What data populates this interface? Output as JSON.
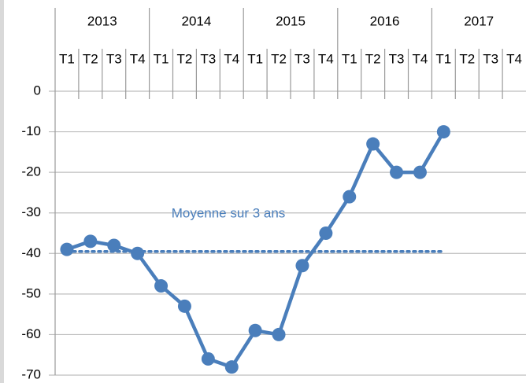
{
  "chart_data": {
    "type": "line",
    "groups": [
      "2013",
      "2014",
      "2015",
      "2016",
      "2017"
    ],
    "categories": [
      "T1",
      "T2",
      "T3",
      "T4",
      "T1",
      "T2",
      "T3",
      "T4",
      "T1",
      "T2",
      "T3",
      "T4",
      "T1",
      "T2",
      "T3",
      "T4",
      "T1",
      "T2",
      "T3",
      "T4"
    ],
    "series": [
      {
        "color": "#4a7ebb",
        "values": [
          -39,
          -37,
          -38,
          -40,
          -48,
          -53,
          -66,
          -68,
          -59,
          -60,
          -43,
          -35,
          -26,
          -13,
          -20,
          -20,
          -10,
          null,
          null,
          null
        ]
      },
      {
        "name": "Moyenne sur 3 ans",
        "color": "#4a7ebb",
        "dotted": true,
        "values": [
          -39.5,
          -39.5,
          -39.5,
          -39.5,
          -39.5,
          -39.5,
          -39.5,
          -39.5,
          -39.5,
          -39.5,
          -39.5,
          -39.5,
          -39.5,
          -39.5,
          -39.5,
          -39.5,
          -39.5,
          null,
          null,
          null
        ]
      }
    ],
    "ylim": [
      -70,
      0
    ],
    "yticks": [
      0,
      -10,
      -20,
      -30,
      -40,
      -50,
      -60,
      -70
    ],
    "grid": true
  }
}
